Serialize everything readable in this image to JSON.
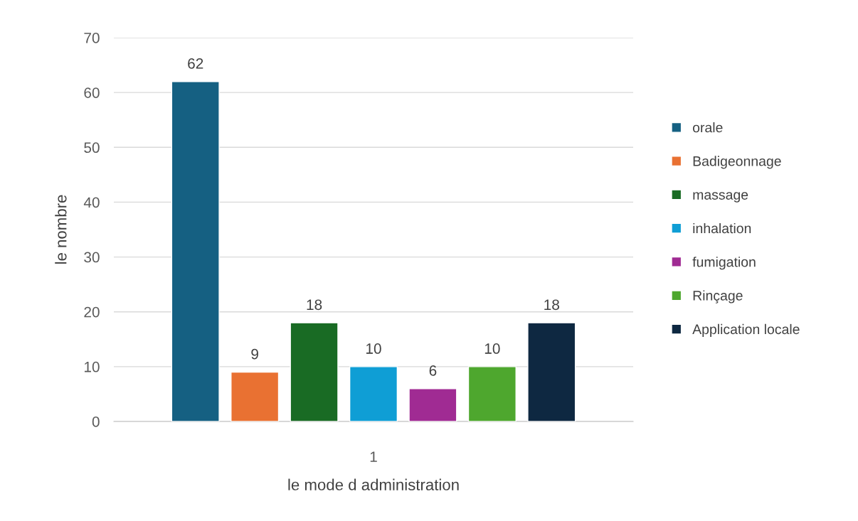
{
  "chart_data": {
    "type": "bar",
    "xlabel": "le mode d administration",
    "ylabel": "le nombre",
    "categories": [
      "1"
    ],
    "series": [
      {
        "name": "orale",
        "color": "#156082",
        "values": [
          62
        ]
      },
      {
        "name": "Badigeonnage",
        "color": "#e97132",
        "values": [
          9
        ]
      },
      {
        "name": "massage",
        "color": "#196b24",
        "values": [
          18
        ]
      },
      {
        "name": "inhalation",
        "color": "#0f9ed5",
        "values": [
          10
        ]
      },
      {
        "name": "fumigation",
        "color": "#a02b93",
        "values": [
          6
        ]
      },
      {
        "name": "Rinçage",
        "color": "#4ea72e",
        "values": [
          10
        ]
      },
      {
        "name": "Application locale",
        "color": "#0e2841",
        "values": [
          18
        ]
      }
    ],
    "ylim": [
      0,
      70
    ],
    "yticks": [
      0,
      10,
      20,
      30,
      40,
      50,
      60,
      70
    ],
    "grid": "y",
    "legend": "right",
    "data_labels": true
  }
}
